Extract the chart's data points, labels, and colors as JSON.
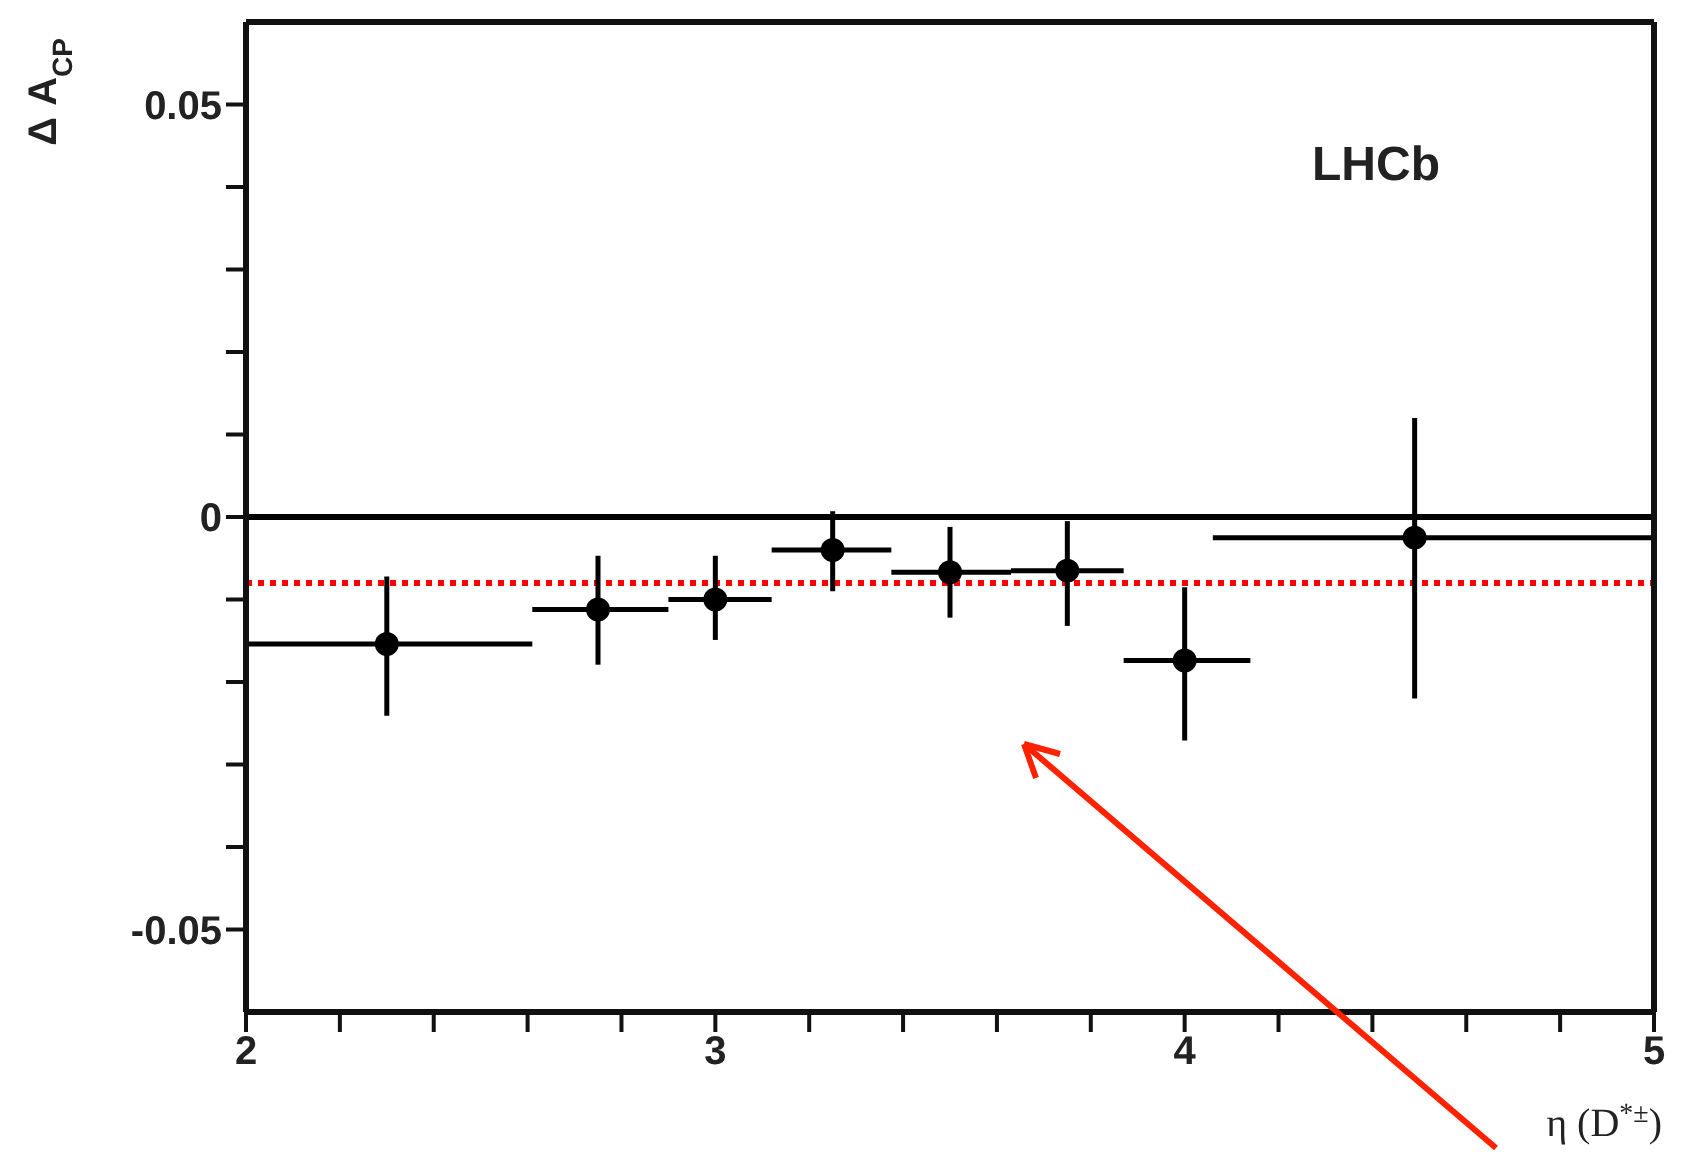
{
  "chart_data": {
    "type": "scatter",
    "xlabel": "η (D$^{*±}$)",
    "ylabel": "Δ A$_{CP}$",
    "annotations": [
      "LHCb"
    ],
    "x": [
      2.3,
      2.75,
      3.0,
      3.25,
      3.5,
      3.75,
      4.0,
      4.49
    ],
    "values": [
      -0.0154,
      -0.0112,
      -0.01,
      -0.004,
      -0.0067,
      -0.0065,
      -0.0174,
      -0.0025
    ],
    "errors": [
      [
        -0.0241,
        -0.0072
      ],
      [
        -0.0179,
        -0.0047
      ],
      [
        -0.0149,
        -0.0047
      ],
      [
        -0.009,
        0.0007
      ],
      [
        -0.0122,
        -0.0012
      ],
      [
        -0.0132,
        -0.0005
      ],
      [
        -0.0271,
        -0.0085
      ],
      [
        -0.022,
        0.012
      ]
    ],
    "xerrors": [
      [
        2.0,
        2.61
      ],
      [
        2.61,
        2.9
      ],
      [
        2.9,
        3.12
      ],
      [
        3.12,
        3.375
      ],
      [
        3.375,
        3.63
      ],
      [
        3.63,
        3.87
      ],
      [
        3.87,
        4.14
      ],
      [
        4.06,
        5.0
      ]
    ],
    "color": "#000000",
    "marker": "circle",
    "xlim": [
      2,
      5
    ],
    "xticks": [
      2,
      {
        "value": 2.2,
        "label": null
      },
      {
        "value": 2.4,
        "label": null
      },
      {
        "value": 2.6,
        "label": null
      },
      {
        "value": 2.8,
        "label": null
      },
      3,
      {
        "value": 3.2,
        "label": null
      },
      {
        "value": 3.4,
        "label": null
      },
      {
        "value": 3.6,
        "label": null
      },
      {
        "value": 3.8,
        "label": null
      },
      4,
      {
        "value": 4.2,
        "label": null
      },
      {
        "value": 4.4,
        "label": null
      },
      {
        "value": 4.6,
        "label": null
      },
      {
        "value": 4.8,
        "label": null
      },
      5
    ],
    "ylim": [
      -0.06,
      0.06
    ],
    "yticks": [
      {
        "value": -0.05,
        "label": "-0.05"
      },
      {
        "value": -0.04,
        "label": null
      },
      {
        "value": -0.03,
        "label": null
      },
      {
        "value": -0.02,
        "label": null
      },
      {
        "value": -0.01,
        "label": null
      },
      0,
      {
        "value": 0.01,
        "label": null
      },
      {
        "value": 0.02,
        "label": null
      },
      {
        "value": 0.03,
        "label": null
      },
      {
        "value": 0.04,
        "label": null
      },
      {
        "value": 0.05,
        "label": "0.05"
      }
    ],
    "ref_lines": [
      {
        "axis": "y",
        "value": 0,
        "color": "#000000",
        "line_style": "solid"
      },
      {
        "axis": "y",
        "value": -0.008,
        "color": "#ff0000",
        "line_style": "dotted"
      }
    ],
    "legend": false
  }
}
